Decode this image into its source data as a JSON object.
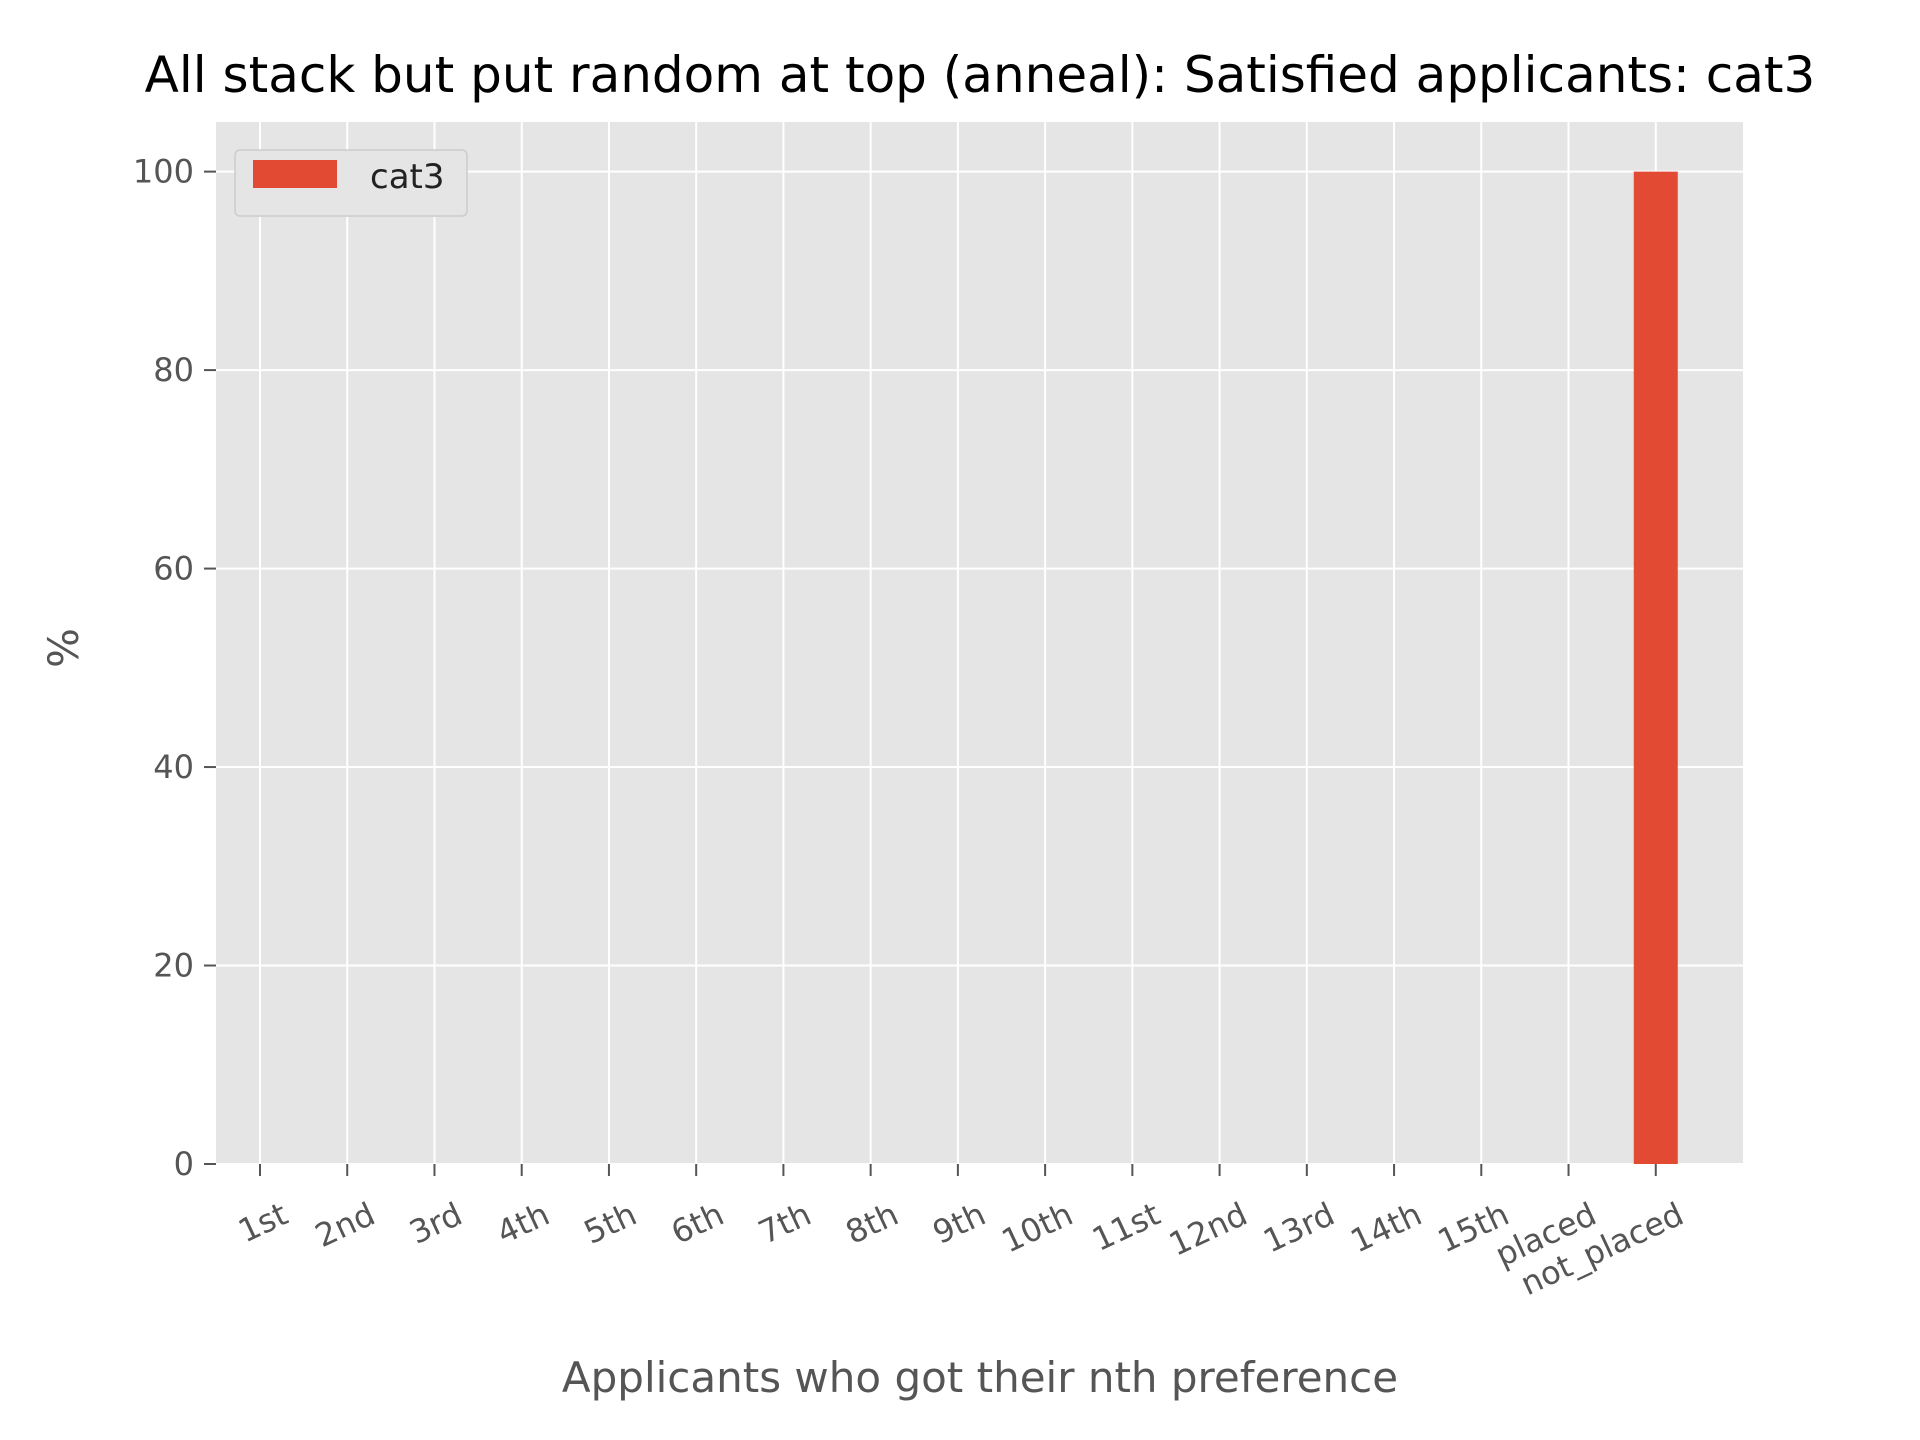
{
  "chart_data": {
    "type": "bar",
    "title": "All stack but put random at top (anneal): Satisfied applicants: cat3",
    "xlabel": "Applicants who got their nth preference",
    "ylabel": "%",
    "categories": [
      "1st",
      "2nd",
      "3rd",
      "4th",
      "5th",
      "6th",
      "7th",
      "8th",
      "9th",
      "10th",
      "11st",
      "12nd",
      "13rd",
      "14th",
      "15th",
      "placed",
      "not_placed"
    ],
    "series": [
      {
        "name": "cat3",
        "color": "#E24A33",
        "values": [
          0,
          0,
          0,
          0,
          0,
          0,
          0,
          0,
          0,
          0,
          0,
          0,
          0,
          0,
          0,
          0,
          100
        ]
      }
    ],
    "ylim": [
      0,
      105
    ],
    "yticks": [
      0,
      20,
      40,
      60,
      80,
      100
    ],
    "grid": true,
    "legend": "top-left",
    "colors": {
      "plot_background": "#E5E5E5",
      "grid": "#FFFFFF",
      "text": "#555555"
    }
  }
}
